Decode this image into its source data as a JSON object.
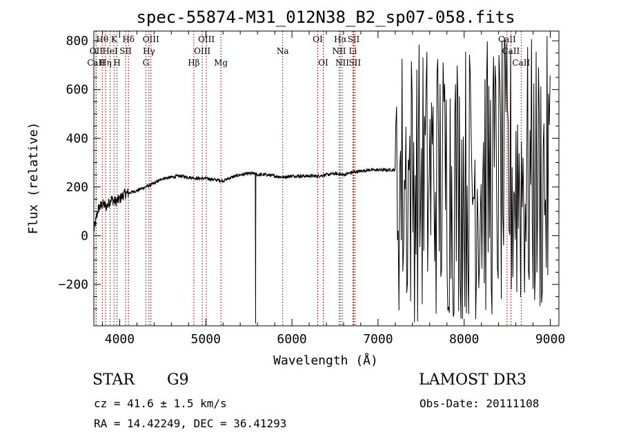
{
  "chart_data": {
    "type": "line",
    "title": "spec-55874-M31_012N38_B2_sp07-058.fits",
    "xlabel": "Wavelength (Å)",
    "ylabel": "Flux (relative)",
    "xlim": [
      3700,
      9100
    ],
    "ylim": [
      -370,
      840
    ],
    "x_ticks": [
      4000,
      5000,
      6000,
      7000,
      8000,
      9000
    ],
    "x_tick_labels": [
      "4000",
      "5000",
      "6000",
      "7000",
      "8000",
      "9000"
    ],
    "y_ticks": [
      -200,
      0,
      200,
      400,
      600,
      800
    ],
    "y_tick_labels": [
      "−200",
      "0",
      "200",
      "400",
      "600",
      "800"
    ],
    "spectral_lines": [
      {
        "label": "Hθ",
        "wavelength": 3798,
        "row": 0
      },
      {
        "label": "OII",
        "wavelength": 3727,
        "row": 1
      },
      {
        "label": "CaII",
        "wavelength": 3725,
        "row": 2
      },
      {
        "label": "K",
        "wavelength": 3934,
        "row": 0
      },
      {
        "label": "HeI",
        "wavelength": 3889,
        "row": 1
      },
      {
        "label": "Hη",
        "wavelength": 3835,
        "row": 2
      },
      {
        "label": "SII",
        "wavelength": 4069,
        "row": 1
      },
      {
        "label": "H",
        "wavelength": 3969,
        "row": 2
      },
      {
        "label": "Hδ",
        "wavelength": 4102,
        "row": 0
      },
      {
        "label": "OIII",
        "wavelength": 4363,
        "row": 0
      },
      {
        "label": "Hγ",
        "wavelength": 4340,
        "row": 1
      },
      {
        "label": "G",
        "wavelength": 4304,
        "row": 2
      },
      {
        "label": "Hβ",
        "wavelength": 4861,
        "row": 2
      },
      {
        "label": "OIII",
        "wavelength": 5007,
        "row": 0
      },
      {
        "label": "OIII",
        "wavelength": 4959,
        "row": 1
      },
      {
        "label": "Mg",
        "wavelength": 5175,
        "row": 2
      },
      {
        "label": "Na",
        "wavelength": 5893,
        "row": 1
      },
      {
        "label": "OI",
        "wavelength": 6300,
        "row": 0
      },
      {
        "label": "OI",
        "wavelength": 6364,
        "row": 2
      },
      {
        "label": "Hα",
        "wavelength": 6563,
        "row": 0
      },
      {
        "label": "NII",
        "wavelength": 6548,
        "row": 1
      },
      {
        "label": "NII",
        "wavelength": 6584,
        "row": 2
      },
      {
        "label": "SII",
        "wavelength": 6716,
        "row": 0
      },
      {
        "label": "Li",
        "wavelength": 6708,
        "row": 1
      },
      {
        "label": "SII",
        "wavelength": 6731,
        "row": 2
      },
      {
        "label": "CaII",
        "wavelength": 8498,
        "row": 0
      },
      {
        "label": "CaII",
        "wavelength": 8542,
        "row": 1
      },
      {
        "label": "CaII",
        "wavelength": 8662,
        "row": 2
      }
    ],
    "line_color": "#b22222",
    "spectrum_color": "#000000",
    "spectrum": {
      "x_start": 3700,
      "x_end": 9100,
      "approx_flux_points": [
        [
          3700,
          20
        ],
        [
          3750,
          110
        ],
        [
          3800,
          130
        ],
        [
          3850,
          120
        ],
        [
          3900,
          150
        ],
        [
          3950,
          140
        ],
        [
          4000,
          150
        ],
        [
          4050,
          170
        ],
        [
          4100,
          175
        ],
        [
          4200,
          185
        ],
        [
          4300,
          200
        ],
        [
          4400,
          215
        ],
        [
          4500,
          235
        ],
        [
          4600,
          240
        ],
        [
          4700,
          245
        ],
        [
          4800,
          240
        ],
        [
          4900,
          235
        ],
        [
          5000,
          235
        ],
        [
          5100,
          230
        ],
        [
          5200,
          225
        ],
        [
          5300,
          240
        ],
        [
          5400,
          250
        ],
        [
          5500,
          255
        ],
        [
          5580,
          255
        ],
        [
          5600,
          250
        ],
        [
          5700,
          250
        ],
        [
          5800,
          245
        ],
        [
          5900,
          240
        ],
        [
          6000,
          245
        ],
        [
          6100,
          245
        ],
        [
          6200,
          245
        ],
        [
          6300,
          245
        ],
        [
          6400,
          250
        ],
        [
          6500,
          255
        ],
        [
          6600,
          250
        ],
        [
          6700,
          260
        ],
        [
          6800,
          265
        ],
        [
          6900,
          270
        ],
        [
          7000,
          270
        ],
        [
          7100,
          270
        ],
        [
          7200,
          270
        ]
      ],
      "sky_dip": {
        "wavelength": 5577,
        "flux": -360
      },
      "noisy_region": {
        "start": 7200,
        "end": 9000,
        "min": -360,
        "max": 820
      }
    }
  },
  "info": {
    "object_class": "STAR",
    "subclass": "G9",
    "survey": "LAMOST DR3",
    "cz": "cz = 41.6 ± 1.5 km/s",
    "obs_date": "Obs-Date: 20111108",
    "coords": "RA =  14.42249, DEC =  36.41293"
  }
}
